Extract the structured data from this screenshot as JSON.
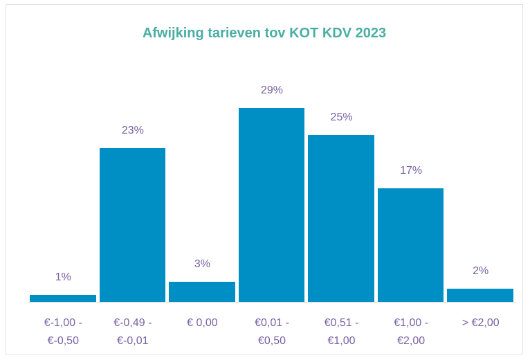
{
  "chart_data": {
    "type": "bar",
    "title": "Afwijking tarieven tov KOT KDV 2023",
    "categories": [
      "€-1,00 - €-0,50",
      "€-0,49 - €-0,01",
      "€ 0,00",
      "€0,01 - €0,50",
      "€0,51 - €1,00",
      "€1,00 - €2,00",
      "> €2,00"
    ],
    "values": [
      1,
      23,
      3,
      29,
      25,
      17,
      2
    ],
    "value_labels": [
      "1%",
      "23%",
      "3%",
      "29%",
      "25%",
      "17%",
      "2%"
    ],
    "color": "#008fc4"
  }
}
